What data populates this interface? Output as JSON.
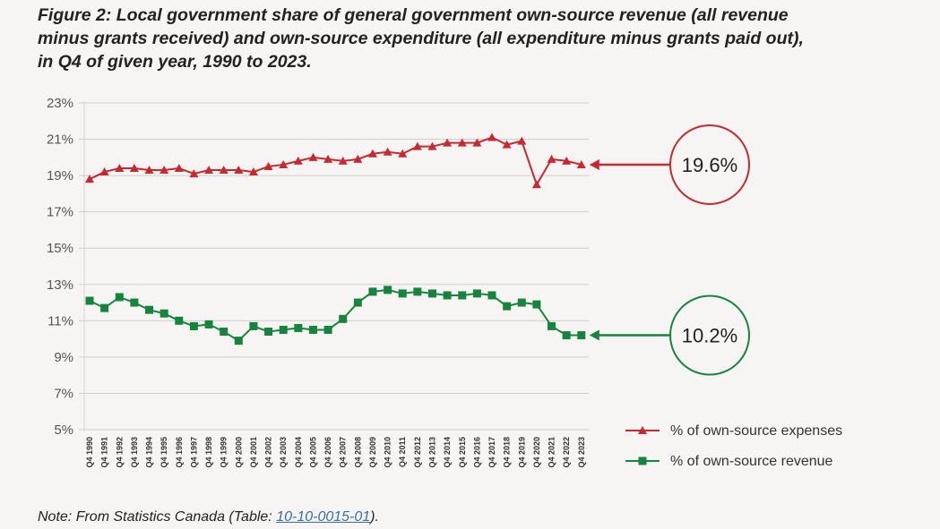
{
  "title_lines": [
    "Figure 2: Local government share of general government own-source revenue (all revenue",
    "minus grants received) and own-source expenditure (all expenditure minus grants paid out),",
    "in Q4 of given year, 1990 to 2023."
  ],
  "note": {
    "prefix": "Note: From Statistics Canada (Table: ",
    "link_text": "10-10-0015-01",
    "suffix": ")."
  },
  "colors": {
    "expenses": "#c8282f",
    "revenue": "#16843c",
    "grid": "#cfcfcf"
  },
  "chart_data": {
    "type": "line",
    "title": "",
    "xlabel": "",
    "ylabel": "",
    "ylim": [
      5,
      23
    ],
    "yticks": [
      "5%",
      "7%",
      "9%",
      "11%",
      "13%",
      "15%",
      "17%",
      "19%",
      "21%",
      "23%"
    ],
    "grid": true,
    "legend_position": "bottom-right",
    "categories": [
      "Q4 1990",
      "Q4 1991",
      "Q4 1992",
      "Q4 1993",
      "Q4 1994",
      "Q4 1995",
      "Q4 1996",
      "Q4 1997",
      "Q4 1998",
      "Q4 1999",
      "Q4 2000",
      "Q4 2001",
      "Q4 2002",
      "Q4 2003",
      "Q4 2004",
      "Q4 2005",
      "Q4 2006",
      "Q4 2007",
      "Q4 2008",
      "Q4 2009",
      "Q4 2010",
      "Q4 2011",
      "Q4 2012",
      "Q4 2013",
      "Q4 2014",
      "Q4 2015",
      "Q4 2016",
      "Q4 2017",
      "Q4 2018",
      "Q4 2019",
      "Q4 2020",
      "Q4 2021",
      "Q4 2022",
      "Q4 2023"
    ],
    "series": [
      {
        "name": "% of own-source expenses",
        "marker": "triangle",
        "values": [
          18.8,
          19.2,
          19.4,
          19.4,
          19.3,
          19.3,
          19.4,
          19.1,
          19.3,
          19.3,
          19.3,
          19.2,
          19.5,
          19.6,
          19.8,
          20.0,
          19.9,
          19.8,
          19.9,
          20.2,
          20.3,
          20.2,
          20.6,
          20.6,
          20.8,
          20.8,
          20.8,
          21.1,
          20.7,
          20.9,
          18.5,
          19.9,
          19.8,
          19.6
        ],
        "callout": "19.6%"
      },
      {
        "name": "% of own-source revenue",
        "marker": "square",
        "values": [
          12.1,
          11.7,
          12.3,
          12.0,
          11.6,
          11.4,
          11.0,
          10.7,
          10.8,
          10.4,
          9.9,
          10.7,
          10.4,
          10.5,
          10.6,
          10.5,
          10.5,
          11.1,
          12.0,
          12.6,
          12.7,
          12.5,
          12.6,
          12.5,
          12.4,
          12.4,
          12.5,
          12.4,
          11.8,
          12.0,
          11.9,
          10.7,
          10.2,
          10.2
        ],
        "callout": "10.2%"
      }
    ]
  }
}
